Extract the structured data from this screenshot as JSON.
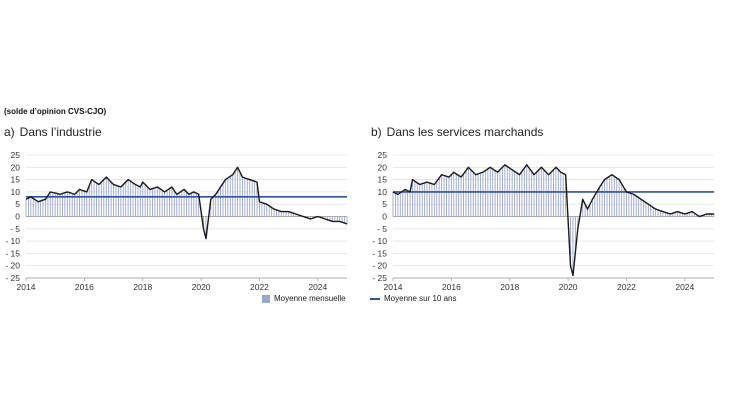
{
  "unit_note": "(solde d’opinion CVS-CJO)",
  "colors": {
    "bars": "#9aa6d6",
    "line": "#1a1a1a",
    "average": "#2b52a3",
    "grid": "#d9d9d9"
  },
  "legend": {
    "monthly": "Moyenne mensuelle",
    "average": "Moyenne sur 10 ans"
  },
  "chart_data": [
    {
      "type": "bar",
      "panel": "a)",
      "title": "Dans l’industrie",
      "xlabel": "",
      "ylabel": "",
      "x_start": "2014-01",
      "x_end": "2025-01",
      "ylim": [
        -25,
        25
      ],
      "yticks": [
        25,
        20,
        15,
        10,
        5,
        0,
        -5,
        -10,
        -15,
        -20,
        -25
      ],
      "xticks": [
        "2014",
        "2016",
        "2018",
        "2020",
        "2022",
        "2024"
      ],
      "grid": true,
      "average_10y": 8,
      "keypoints": [
        [
          "2014-01",
          7
        ],
        [
          "2014-03",
          8
        ],
        [
          "2014-06",
          6
        ],
        [
          "2014-09",
          7
        ],
        [
          "2014-11",
          10
        ],
        [
          "2015-03",
          9
        ],
        [
          "2015-06",
          10
        ],
        [
          "2015-09",
          9
        ],
        [
          "2015-11",
          11
        ],
        [
          "2016-02",
          10
        ],
        [
          "2016-04",
          15
        ],
        [
          "2016-07",
          13
        ],
        [
          "2016-10",
          16
        ],
        [
          "2017-01",
          13
        ],
        [
          "2017-04",
          12
        ],
        [
          "2017-07",
          15
        ],
        [
          "2017-10",
          13
        ],
        [
          "2017-12",
          12
        ],
        [
          "2018-01",
          14
        ],
        [
          "2018-04",
          11
        ],
        [
          "2018-07",
          12
        ],
        [
          "2018-10",
          10
        ],
        [
          "2019-01",
          12
        ],
        [
          "2019-03",
          9
        ],
        [
          "2019-06",
          11
        ],
        [
          "2019-08",
          9
        ],
        [
          "2019-10",
          10
        ],
        [
          "2019-12",
          9
        ],
        [
          "2020-02",
          -5
        ],
        [
          "2020-03",
          -9
        ],
        [
          "2020-05",
          7
        ],
        [
          "2020-07",
          9
        ],
        [
          "2020-09",
          12
        ],
        [
          "2020-11",
          15
        ],
        [
          "2021-02",
          17
        ],
        [
          "2021-04",
          20
        ],
        [
          "2021-06",
          16
        ],
        [
          "2021-09",
          15
        ],
        [
          "2021-12",
          14
        ],
        [
          "2022-01",
          6
        ],
        [
          "2022-04",
          5
        ],
        [
          "2022-07",
          3
        ],
        [
          "2022-10",
          2
        ],
        [
          "2023-01",
          2
        ],
        [
          "2023-04",
          1
        ],
        [
          "2023-07",
          0
        ],
        [
          "2023-10",
          -1
        ],
        [
          "2024-01",
          0
        ],
        [
          "2024-04",
          -1
        ],
        [
          "2024-07",
          -2
        ],
        [
          "2024-10",
          -2
        ],
        [
          "2025-01",
          -3
        ]
      ]
    },
    {
      "type": "bar",
      "panel": "b)",
      "title": "Dans les services marchands",
      "xlabel": "",
      "ylabel": "",
      "x_start": "2014-01",
      "x_end": "2025-01",
      "ylim": [
        -25,
        25
      ],
      "yticks": [
        25,
        20,
        15,
        10,
        5,
        0,
        -5,
        -10,
        -15,
        -20,
        -25
      ],
      "xticks": [
        "2014",
        "2016",
        "2018",
        "2020",
        "2022",
        "2024"
      ],
      "grid": true,
      "average_10y": 10,
      "keypoints": [
        [
          "2014-01",
          10
        ],
        [
          "2014-03",
          9
        ],
        [
          "2014-06",
          11
        ],
        [
          "2014-08",
          10
        ],
        [
          "2014-09",
          15
        ],
        [
          "2014-12",
          13
        ],
        [
          "2015-03",
          14
        ],
        [
          "2015-06",
          13
        ],
        [
          "2015-09",
          17
        ],
        [
          "2015-12",
          16
        ],
        [
          "2016-02",
          18
        ],
        [
          "2016-05",
          16
        ],
        [
          "2016-08",
          20
        ],
        [
          "2016-11",
          17
        ],
        [
          "2017-02",
          18
        ],
        [
          "2017-05",
          20
        ],
        [
          "2017-08",
          18
        ],
        [
          "2017-11",
          21
        ],
        [
          "2018-02",
          19
        ],
        [
          "2018-05",
          17
        ],
        [
          "2018-08",
          21
        ],
        [
          "2018-11",
          17
        ],
        [
          "2019-02",
          20
        ],
        [
          "2019-05",
          17
        ],
        [
          "2019-08",
          20
        ],
        [
          "2019-10",
          18
        ],
        [
          "2019-12",
          17
        ],
        [
          "2020-02",
          -20
        ],
        [
          "2020-03",
          -24
        ],
        [
          "2020-05",
          -5
        ],
        [
          "2020-07",
          7
        ],
        [
          "2020-09",
          3
        ],
        [
          "2020-11",
          7
        ],
        [
          "2021-02",
          12
        ],
        [
          "2021-04",
          15
        ],
        [
          "2021-07",
          17
        ],
        [
          "2021-10",
          15
        ],
        [
          "2022-01",
          10
        ],
        [
          "2022-04",
          9
        ],
        [
          "2022-07",
          7
        ],
        [
          "2022-10",
          5
        ],
        [
          "2023-01",
          3
        ],
        [
          "2023-04",
          2
        ],
        [
          "2023-07",
          1
        ],
        [
          "2023-10",
          2
        ],
        [
          "2024-01",
          1
        ],
        [
          "2024-04",
          2
        ],
        [
          "2024-07",
          0
        ],
        [
          "2024-10",
          1
        ],
        [
          "2025-01",
          1
        ]
      ]
    }
  ]
}
